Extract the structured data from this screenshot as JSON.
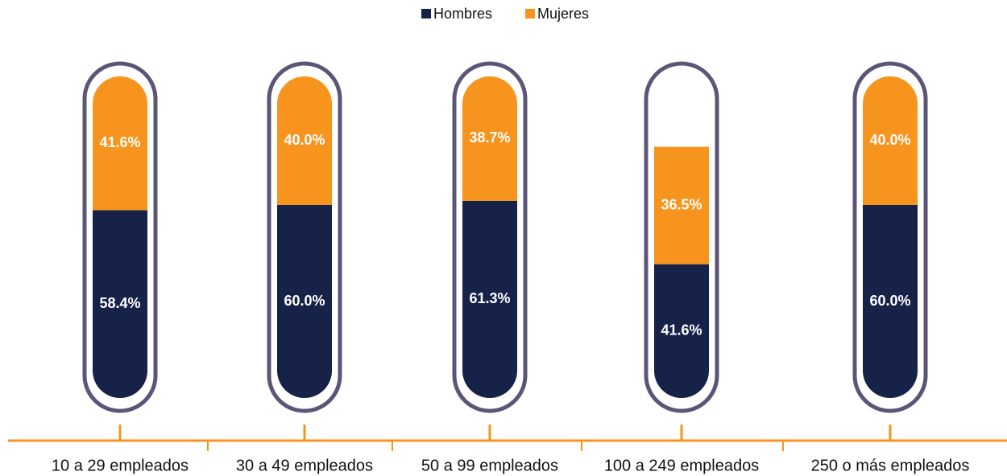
{
  "chart_data": {
    "type": "bar",
    "stacked": true,
    "categories": [
      "10 a 29 empleados",
      "30 a 49 empleados",
      "50 a 99 empleados",
      "100 a 249 empleados",
      "250 o más empleados"
    ],
    "series": [
      {
        "name": "Hombres",
        "color": "#172249",
        "values": [
          58.4,
          60.0,
          61.3,
          41.6,
          60.0
        ],
        "value_labels": [
          "58.4%",
          "60.0%",
          "61.3%",
          "41.6%",
          "60.0%"
        ]
      },
      {
        "name": "Mujeres",
        "color": "#f7941d",
        "values": [
          41.6,
          40.0,
          38.7,
          36.5,
          40.0
        ],
        "value_labels": [
          "41.6%",
          "40.0%",
          "38.7%",
          "36.5%",
          "40.0%"
        ]
      }
    ],
    "ylim": [
      0,
      100
    ],
    "legend": "top"
  }
}
